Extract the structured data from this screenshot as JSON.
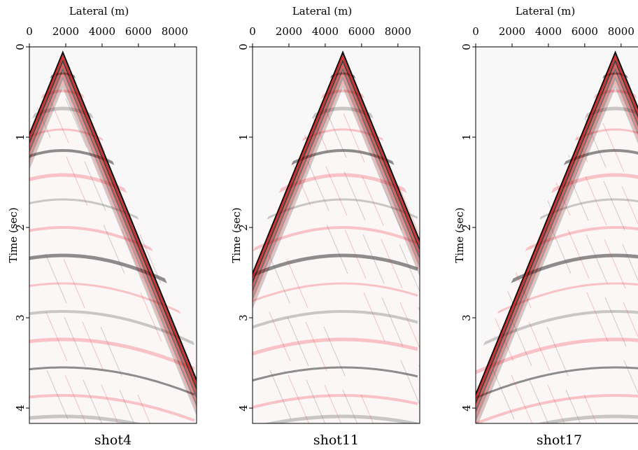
{
  "chart_data": [
    {
      "type": "image",
      "xlabel": "Lateral (m)",
      "ylabel": "Time (sec)",
      "caption": "shot4",
      "xlim": [
        0,
        9200
      ],
      "xticks": [
        0,
        2000,
        4000,
        6000,
        8000
      ],
      "ylim": [
        0,
        4.17
      ],
      "yticks": [
        0,
        1,
        2,
        3,
        4
      ]
    },
    {
      "type": "image",
      "xlabel": "Lateral (m)",
      "ylabel": "Time (sec)",
      "caption": "shot11",
      "xlim": [
        0,
        9200
      ],
      "xticks": [
        0,
        2000,
        4000,
        6000,
        8000
      ],
      "ylim": [
        0,
        4.17
      ],
      "yticks": [
        0,
        1,
        2,
        3,
        4
      ]
    },
    {
      "type": "image",
      "xlabel": "Lateral (m)",
      "ylabel": "Time (sec)",
      "caption": "shot17",
      "xlim": [
        0,
        9200
      ],
      "xticks": [
        0,
        2000,
        4000,
        6000,
        8000
      ],
      "ylim": [
        0,
        4.17
      ],
      "yticks": [
        0,
        1,
        2,
        3,
        4
      ]
    }
  ]
}
